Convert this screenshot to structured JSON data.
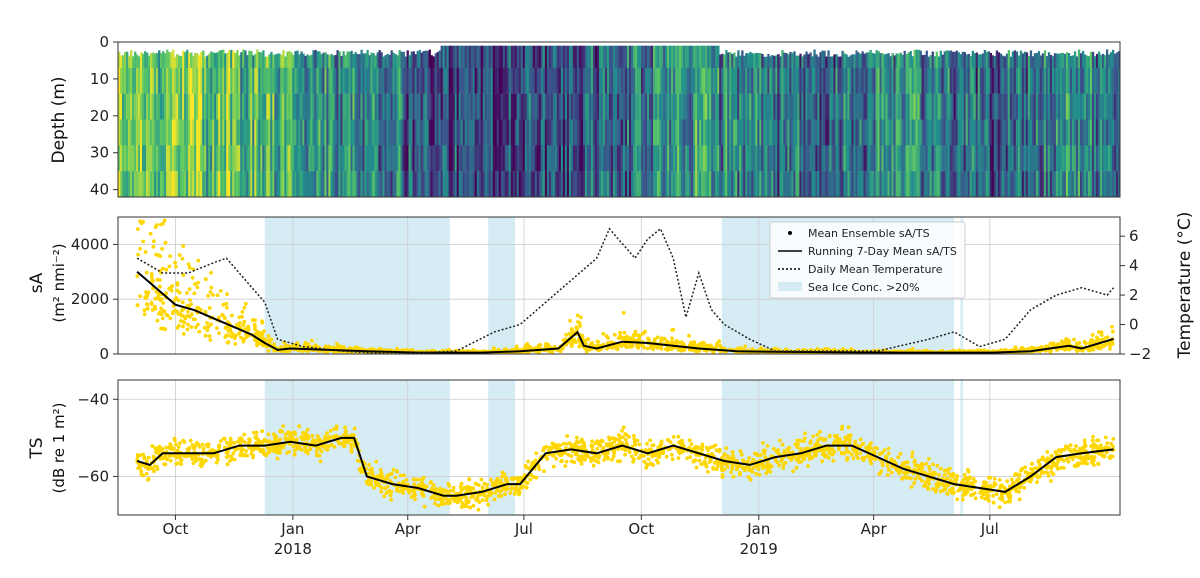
{
  "chart_data": [
    {
      "type": "heatmap",
      "ylabel": "Depth (m)",
      "ylim": [
        42,
        0
      ],
      "yticks": [
        "0",
        "10",
        "20",
        "30",
        "40"
      ],
      "colormap": "viridis",
      "colors": [
        "#440154",
        "#3b528b",
        "#21918c",
        "#5ec962",
        "#fde725"
      ],
      "column_mean_intensity": [
        0.8,
        0.75,
        0.78,
        0.72,
        0.65,
        0.6,
        0.55,
        0.5,
        0.45,
        0.4,
        0.28,
        0.22,
        0.2,
        0.22,
        0.25,
        0.28,
        0.3,
        0.35,
        0.42,
        0.48,
        0.5,
        0.45,
        0.4,
        0.35,
        0.3,
        0.35,
        0.42,
        0.48,
        0.42,
        0.35,
        0.3,
        0.35,
        0.45,
        0.5,
        0.4
      ]
    },
    {
      "type": "scatter",
      "ylabel": "sₐ (m² nmi⁻²)",
      "ylabel_parts": {
        "line1": "sA",
        "line2": "(m² nmi⁻²)"
      },
      "y2label": "Temperature (°C)",
      "ylim": [
        0,
        5000
      ],
      "y2lim": [
        -2,
        7.3
      ],
      "yticks": [
        "0",
        "2000",
        "4000"
      ],
      "y2ticks": [
        "−2",
        "0",
        "2",
        "4",
        "6"
      ],
      "legend": {
        "position": "top-right",
        "entries": [
          "Mean Ensemble sA/TS",
          "Running 7-Day Mean sA/TS",
          "Daily Mean Temperature",
          "Sea Ice Conc. >20%"
        ]
      },
      "series": [
        {
          "name": "Running 7-Day Mean sA/TS",
          "x": [
            0,
            15,
            30,
            45,
            60,
            75,
            90,
            100,
            110,
            120,
            150,
            180,
            220,
            270,
            300,
            330,
            345,
            350,
            360,
            380,
            400,
            420,
            440,
            470,
            500,
            560,
            600,
            640,
            670,
            700,
            730,
            740,
            765
          ],
          "y": [
            3000,
            2400,
            1800,
            1600,
            1300,
            1000,
            700,
            400,
            150,
            200,
            150,
            100,
            50,
            50,
            100,
            200,
            800,
            300,
            200,
            450,
            400,
            300,
            200,
            100,
            80,
            60,
            50,
            50,
            50,
            100,
            300,
            200,
            550
          ]
        },
        {
          "name": "Daily Mean Temperature",
          "x": [
            0,
            20,
            40,
            60,
            70,
            85,
            100,
            110,
            130,
            160,
            200,
            250,
            280,
            300,
            320,
            340,
            360,
            370,
            390,
            400,
            410,
            420,
            430,
            440,
            450,
            460,
            480,
            500,
            540,
            580,
            620,
            640,
            660,
            680,
            700,
            720,
            740,
            760,
            765
          ],
          "y": [
            4.5,
            3.5,
            3.5,
            4.2,
            4.5,
            3.0,
            1.5,
            -1.0,
            -1.5,
            -1.8,
            -2.0,
            -1.8,
            -0.5,
            0.0,
            1.5,
            3.0,
            4.5,
            6.5,
            4.5,
            5.8,
            6.5,
            4.5,
            0.5,
            3.5,
            1.0,
            0.0,
            -1.0,
            -1.8,
            -1.8,
            -1.8,
            -1.0,
            -0.5,
            -1.5,
            -1.0,
            1.0,
            2.0,
            2.5,
            2.0,
            2.5
          ]
        }
      ]
    },
    {
      "type": "scatter",
      "ylabel": "TS",
      "ylabel_parts": {
        "line1": "TS",
        "line2": "(dB re 1 m²)"
      },
      "ylim": [
        -70,
        -35
      ],
      "yticks": [
        "−40",
        "−60"
      ],
      "series": [
        {
          "name": "Running 7-Day Mean sA/TS",
          "x": [
            0,
            10,
            20,
            40,
            60,
            80,
            100,
            120,
            140,
            160,
            170,
            180,
            190,
            200,
            220,
            240,
            250,
            270,
            290,
            300,
            320,
            340,
            360,
            380,
            400,
            420,
            440,
            460,
            480,
            500,
            520,
            540,
            560,
            580,
            600,
            620,
            640,
            660,
            680,
            700,
            720,
            740,
            765
          ],
          "y": [
            -56,
            -57,
            -54,
            -54,
            -54,
            -52,
            -52,
            -51,
            -52,
            -50,
            -50,
            -60,
            -61,
            -62,
            -63,
            -65,
            -65,
            -64,
            -62,
            -62,
            -54,
            -53,
            -54,
            -52,
            -54,
            -52,
            -54,
            -56,
            -57,
            -55,
            -54,
            -52,
            -52,
            -55,
            -58,
            -60,
            -62,
            -63,
            -64,
            -60,
            -55,
            -54,
            -53
          ]
        }
      ]
    }
  ],
  "x_axis": {
    "ticks": [
      "Oct",
      "Jan",
      "Apr",
      "Jul",
      "Oct",
      "Jan",
      "Apr",
      "Jul"
    ],
    "tick_days": [
      30,
      122,
      212,
      303,
      395,
      487,
      577,
      668
    ],
    "year_labels": [
      "2018",
      "2019"
    ],
    "year_label_days": [
      122,
      487
    ],
    "domain_days": [
      -15,
      770
    ]
  },
  "sea_ice_periods": [
    [
      100,
      245
    ],
    [
      275,
      296
    ],
    [
      458,
      640
    ],
    [
      645,
      647
    ]
  ]
}
